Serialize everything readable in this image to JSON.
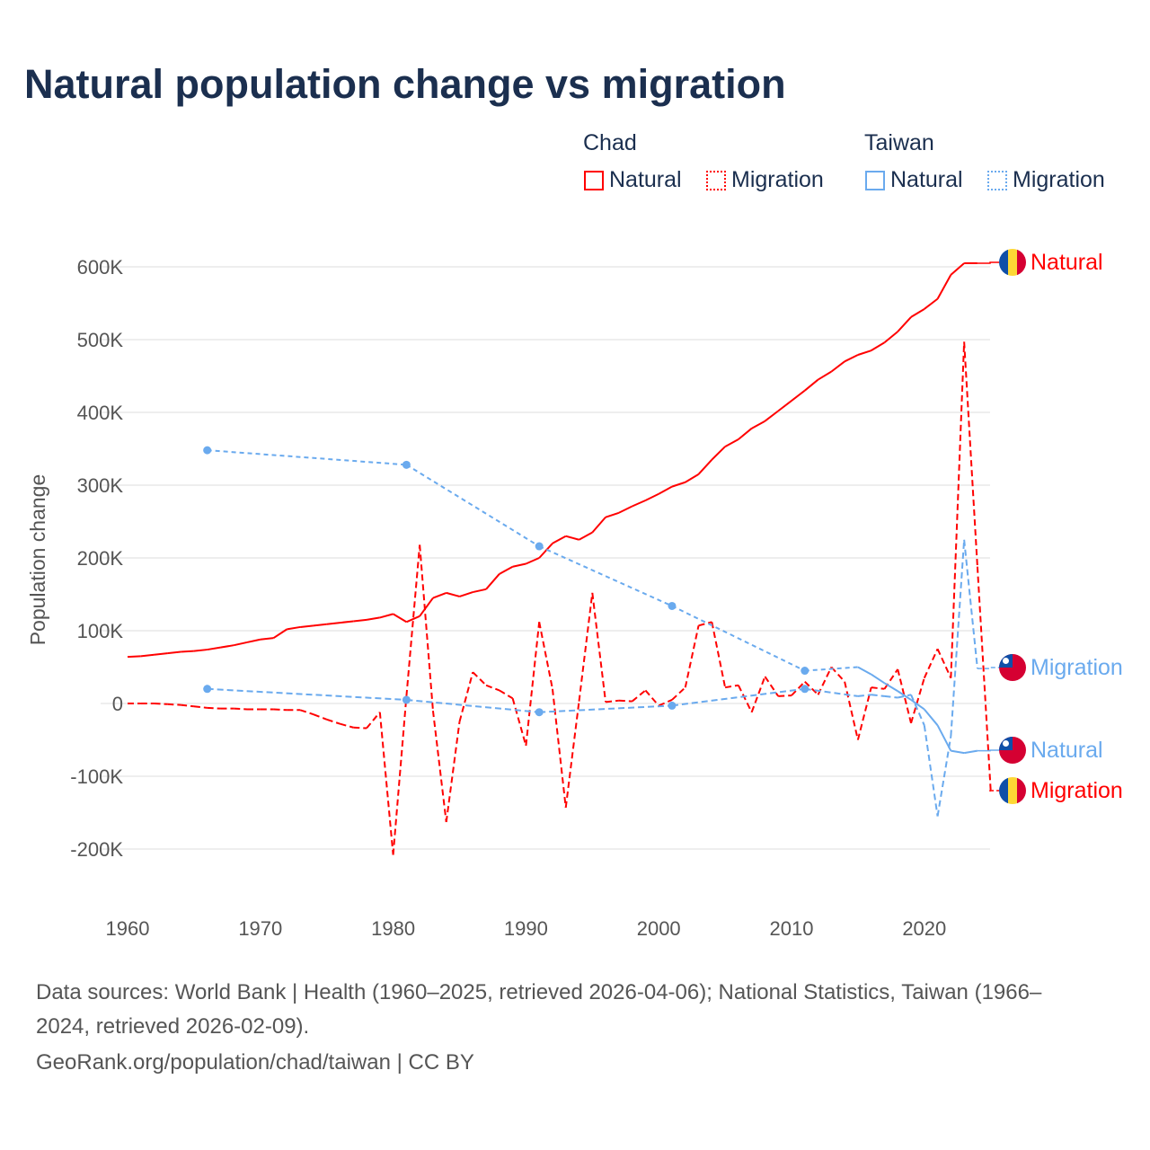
{
  "title": "Natural population change vs migration",
  "legend": {
    "groups": [
      {
        "name": "Chad",
        "color": "#ff0000",
        "items": [
          "Natural",
          "Migration"
        ]
      },
      {
        "name": "Taiwan",
        "color": "#6aaaee",
        "items": [
          "Natural",
          "Migration"
        ]
      }
    ]
  },
  "footer": {
    "line1": "Data sources: World Bank | Health (1960–2025, retrieved 2026-04-06); National Statistics, Taiwan (1966–",
    "line2": "2024, retrieved 2026-02-09).",
    "line3": "GeoRank.org/population/chad/taiwan | CC BY"
  },
  "chart_data": {
    "type": "line",
    "title": "Natural population change vs migration",
    "xlabel": "",
    "ylabel": "Population change",
    "xlim": [
      1960,
      2025
    ],
    "ylim": [
      -250000,
      650000
    ],
    "x_ticks": [
      1960,
      1970,
      1980,
      1990,
      2000,
      2010,
      2020
    ],
    "x_tick_labels": [
      "1960",
      "1970",
      "1980",
      "1990",
      "2000",
      "2010",
      "2020"
    ],
    "y_ticks": [
      -200000,
      -100000,
      0,
      100000,
      200000,
      300000,
      400000,
      500000,
      600000
    ],
    "y_tick_labels": [
      "-200K",
      "-100K",
      "0",
      "100K",
      "200K",
      "300K",
      "400K",
      "500K",
      "600K"
    ],
    "grid": true,
    "legend_position": "top-right",
    "series": [
      {
        "name": "Chad Natural",
        "country": "Chad",
        "label": "Natural",
        "color": "#ff0000",
        "dashed": false,
        "x": [
          1960,
          1961,
          1962,
          1963,
          1964,
          1965,
          1966,
          1967,
          1968,
          1969,
          1970,
          1971,
          1972,
          1973,
          1974,
          1975,
          1976,
          1977,
          1978,
          1979,
          1980,
          1981,
          1982,
          1983,
          1984,
          1985,
          1986,
          1987,
          1988,
          1989,
          1990,
          1991,
          1992,
          1993,
          1994,
          1995,
          1996,
          1997,
          1998,
          1999,
          2000,
          2001,
          2002,
          2003,
          2004,
          2005,
          2006,
          2007,
          2008,
          2009,
          2010,
          2011,
          2012,
          2013,
          2014,
          2015,
          2016,
          2017,
          2018,
          2019,
          2020,
          2021,
          2022,
          2023,
          2024
        ],
        "y": [
          64000,
          65000,
          67000,
          69000,
          71000,
          72000,
          74000,
          77000,
          80000,
          84000,
          88000,
          90000,
          102000,
          105000,
          107000,
          109000,
          111000,
          113000,
          115000,
          118000,
          123000,
          112000,
          120000,
          145000,
          152000,
          147000,
          153000,
          157000,
          178000,
          188000,
          192000,
          200000,
          220000,
          230000,
          225000,
          235000,
          256000,
          262000,
          271000,
          279000,
          288000,
          298000,
          304000,
          315000,
          335000,
          353000,
          363000,
          378000,
          388000,
          402000,
          416000,
          430000,
          445000,
          456000,
          470000,
          479000,
          485000,
          496000,
          511000,
          531000,
          542000,
          556000,
          589000,
          605000,
          605000
        ]
      },
      {
        "name": "Chad Migration",
        "country": "Chad",
        "label": "Migration",
        "color": "#ff0000",
        "dashed": true,
        "x": [
          1960,
          1961,
          1962,
          1963,
          1964,
          1965,
          1966,
          1967,
          1968,
          1969,
          1970,
          1971,
          1972,
          1973,
          1974,
          1975,
          1976,
          1977,
          1978,
          1979,
          1980,
          1981,
          1982,
          1983,
          1984,
          1985,
          1986,
          1987,
          1988,
          1989,
          1990,
          1991,
          1992,
          1993,
          1994,
          1995,
          1996,
          1997,
          1998,
          1999,
          2000,
          2001,
          2002,
          2003,
          2004,
          2005,
          2006,
          2007,
          2008,
          2009,
          2010,
          2011,
          2012,
          2013,
          2014,
          2015,
          2016,
          2017,
          2018,
          2019,
          2020,
          2021,
          2022,
          2023,
          2024,
          2025
        ],
        "y": [
          0,
          0,
          0,
          -1000,
          -2000,
          -4000,
          -6000,
          -7000,
          -7000,
          -8000,
          -8000,
          -8000,
          -9000,
          -9000,
          -15000,
          -22000,
          -28000,
          -33000,
          -34000,
          -12000,
          -208000,
          10000,
          218000,
          -10000,
          -163000,
          -25000,
          43000,
          25000,
          18000,
          7000,
          -58000,
          112000,
          20000,
          -143000,
          3000,
          152000,
          2000,
          4000,
          3000,
          18000,
          -3000,
          5000,
          22000,
          107000,
          112000,
          22000,
          25000,
          -12000,
          37000,
          10000,
          11000,
          30000,
          12000,
          50000,
          30000,
          -50000,
          22000,
          20000,
          47000,
          -27000,
          35000,
          75000,
          35000,
          497000,
          188000,
          -120000
        ]
      },
      {
        "name": "Taiwan Natural",
        "country": "Taiwan",
        "label": "Natural",
        "color": "#6aaaee",
        "dashed": false,
        "markers": [
          1966,
          1981,
          1991,
          2001,
          2011
        ],
        "x": [
          1966,
          1981,
          1991,
          2001,
          2011,
          2015,
          2016,
          2017,
          2018,
          2019,
          2020,
          2021,
          2022,
          2023,
          2024
        ],
        "y": [
          348000,
          328000,
          216000,
          134000,
          45000,
          50000,
          40000,
          28000,
          17000,
          5000,
          -8000,
          -30000,
          -65000,
          -68000,
          -65000
        ]
      },
      {
        "name": "Taiwan Migration",
        "country": "Taiwan",
        "label": "Migration",
        "color": "#6aaaee",
        "dashed": true,
        "markers": [
          1966,
          1981,
          1991,
          2001,
          2011
        ],
        "x": [
          1966,
          1981,
          1991,
          2001,
          2011,
          2015,
          2016,
          2017,
          2018,
          2019,
          2020,
          2021,
          2022,
          2023,
          2024
        ],
        "y": [
          20000,
          5000,
          -12000,
          -3000,
          20000,
          10000,
          12000,
          10000,
          8000,
          12000,
          -30000,
          -155000,
          -45000,
          225000,
          48000
        ]
      }
    ],
    "end_labels": [
      {
        "series": 0,
        "text": "Natural",
        "flag": "chad"
      },
      {
        "series": 3,
        "text": "Migration",
        "flag": "taiwan"
      },
      {
        "series": 2,
        "text": "Natural",
        "flag": "taiwan"
      },
      {
        "series": 1,
        "text": "Migration",
        "flag": "chad"
      }
    ]
  }
}
